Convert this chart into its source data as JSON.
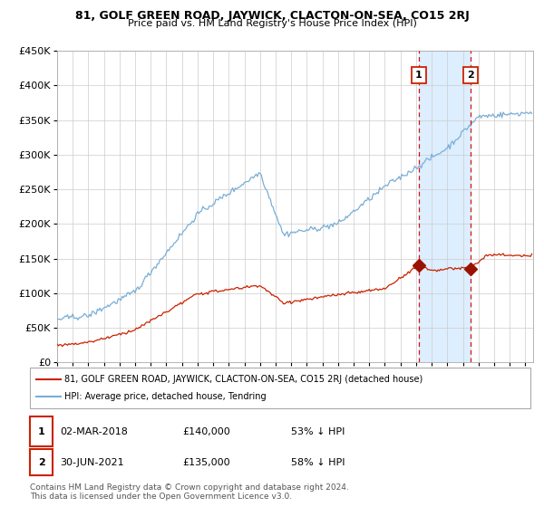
{
  "title": "81, GOLF GREEN ROAD, JAYWICK, CLACTON-ON-SEA, CO15 2RJ",
  "subtitle": "Price paid vs. HM Land Registry's House Price Index (HPI)",
  "legend_line1": "81, GOLF GREEN ROAD, JAYWICK, CLACTON-ON-SEA, CO15 2RJ (detached house)",
  "legend_line2": "HPI: Average price, detached house, Tendring",
  "annotation1_label": "1",
  "annotation1_date": "02-MAR-2018",
  "annotation1_price": "£140,000",
  "annotation1_pct": "53% ↓ HPI",
  "annotation2_label": "2",
  "annotation2_date": "30-JUN-2021",
  "annotation2_price": "£135,000",
  "annotation2_pct": "58% ↓ HPI",
  "footer": "Contains HM Land Registry data © Crown copyright and database right 2024.\nThis data is licensed under the Open Government Licence v3.0.",
  "hpi_color": "#7aaed6",
  "price_color": "#cc2200",
  "marker_color": "#991100",
  "vline_color": "#dd1111",
  "shade_color": "#ddeeff",
  "ylim": [
    0,
    450000
  ],
  "sale1_year": 2018.17,
  "sale1_value": 140000,
  "sale2_year": 2021.5,
  "sale2_value": 135000,
  "xmin": 1995,
  "xmax": 2025.5
}
